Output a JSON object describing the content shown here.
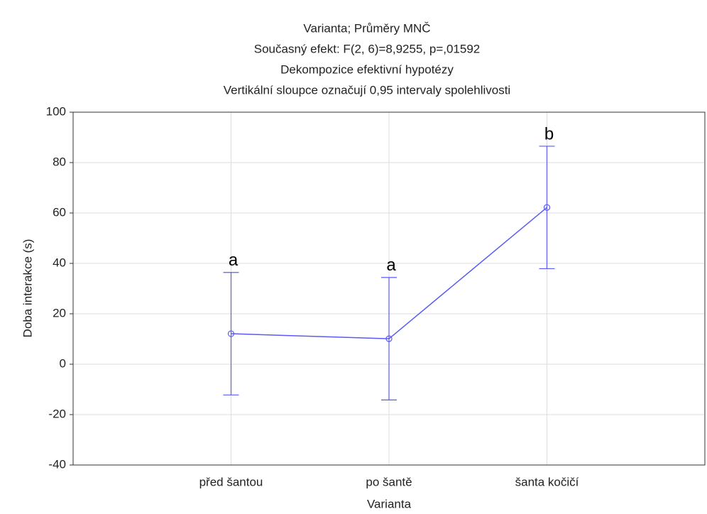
{
  "chart_data": {
    "type": "line",
    "title": "Varianta; Průměry MNČ",
    "subtitle": [
      "Současný efekt: F(2, 6)=8,9255, p=,01592",
      "Dekompozice efektivní hypotézy",
      "Vertikální sloupce označují 0,95 intervaly spolehlivosti"
    ],
    "x_label": "Varianta",
    "y_label": "Doba interakce (s)",
    "categories": [
      "před šantou",
      "po šantě",
      "šanta kočičí"
    ],
    "values": [
      12.1,
      10.1,
      62.2
    ],
    "errors": [
      24.3,
      24.3,
      24.3
    ],
    "annotations": [
      "a",
      "a",
      "b"
    ],
    "color": "#5a5af5",
    "ylim": [
      -40,
      100
    ],
    "yticks": [
      -40,
      -20,
      0,
      20,
      40,
      60,
      80,
      100
    ],
    "grid": true
  }
}
